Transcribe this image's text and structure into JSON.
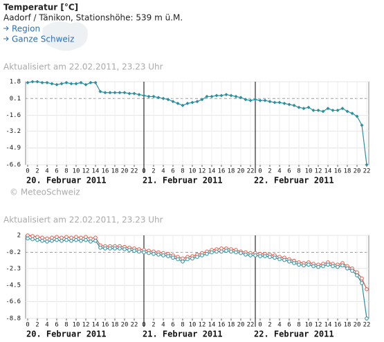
{
  "header": {
    "title": "Temperatur [°C]",
    "station": "Aadorf / Tänikon, Stationshöhe: 539 m ü.M.",
    "links": [
      "Region",
      "Ganze Schweiz"
    ]
  },
  "updated_1": "Aktualisiert am 22.02.2011, 23.23 Uhr",
  "copyright": "© MeteoSchweiz",
  "updated_2": "Aktualisiert am 22.02.2011, 23.23 Uhr",
  "chart_data": [
    {
      "type": "line",
      "grid": true,
      "categories": [
        "0",
        null,
        "2",
        null,
        "4",
        null,
        "6",
        null,
        "8",
        null,
        "10",
        null,
        "12",
        null,
        "14",
        null,
        "16",
        null,
        "18",
        null,
        "20",
        null,
        "22",
        null,
        "0",
        null,
        "2",
        null,
        "4",
        null,
        "6",
        null,
        "8",
        null,
        "10",
        null,
        "12",
        null,
        "14",
        null,
        "16",
        null,
        "18",
        null,
        "20",
        null,
        "22",
        null,
        "0",
        null,
        "2",
        null,
        "4",
        null,
        "6",
        null,
        "8",
        null,
        "10",
        null,
        "12",
        null,
        "14",
        null,
        "16",
        null,
        "18",
        null,
        "20",
        null,
        "22"
      ],
      "day_labels": [
        "20. Februar 2011",
        "21. Februar 2011",
        "22. Februar 2011"
      ],
      "ylim": [
        -6.6,
        1.8
      ],
      "yticks": [
        1.8,
        0.1,
        -1.6,
        -3.2,
        -4.9,
        -6.6
      ],
      "series": [
        {
          "color": "#2a8fa0",
          "marker": "diamond",
          "values": [
            1.7,
            1.8,
            1.8,
            1.7,
            1.7,
            1.6,
            1.5,
            1.6,
            1.7,
            1.6,
            1.6,
            1.7,
            1.5,
            1.7,
            1.7,
            0.8,
            0.7,
            0.7,
            0.7,
            0.7,
            0.7,
            0.6,
            0.6,
            0.5,
            0.4,
            0.3,
            0.3,
            0.2,
            0.1,
            0.0,
            -0.2,
            -0.4,
            -0.6,
            -0.4,
            -0.3,
            -0.2,
            0.0,
            0.3,
            0.3,
            0.4,
            0.4,
            0.5,
            0.4,
            0.3,
            0.2,
            0.0,
            -0.1,
            0.0,
            -0.1,
            -0.1,
            -0.2,
            -0.3,
            -0.3,
            -0.4,
            -0.5,
            -0.6,
            -0.8,
            -0.9,
            -0.8,
            -1.1,
            -1.1,
            -1.2,
            -0.9,
            -1.1,
            -1.1,
            -0.9,
            -1.2,
            -1.4,
            -1.7,
            -2.6,
            -6.6
          ]
        }
      ]
    },
    {
      "type": "line",
      "grid": true,
      "categories": [
        "0",
        null,
        "2",
        null,
        "4",
        null,
        "6",
        null,
        "8",
        null,
        "10",
        null,
        "12",
        null,
        "14",
        null,
        "16",
        null,
        "18",
        null,
        "20",
        null,
        "22",
        null,
        "0",
        null,
        "2",
        null,
        "4",
        null,
        "6",
        null,
        "8",
        null,
        "10",
        null,
        "12",
        null,
        "14",
        null,
        "16",
        null,
        "18",
        null,
        "20",
        null,
        "22",
        null,
        "0",
        null,
        "2",
        null,
        "4",
        null,
        "6",
        null,
        "8",
        null,
        "10",
        null,
        "12",
        null,
        "14",
        null,
        "16",
        null,
        "18",
        null,
        "20",
        null,
        "22"
      ],
      "day_labels": [
        "20. Februar 2011",
        "21. Februar 2011",
        "22. Februar 2011"
      ],
      "ylim": [
        -8.8,
        2.0
      ],
      "yticks": [
        2.0,
        -0.2,
        -2.3,
        -4.5,
        -6.6,
        -8.8
      ],
      "series": [
        {
          "color": "#e05a48",
          "marker": "circle",
          "values": [
            2.0,
            1.9,
            1.8,
            1.7,
            1.6,
            1.7,
            1.8,
            1.7,
            1.8,
            1.7,
            1.8,
            1.7,
            1.8,
            1.6,
            1.7,
            0.7,
            0.6,
            0.6,
            0.6,
            0.6,
            0.5,
            0.4,
            0.3,
            0.2,
            0.1,
            0.0,
            -0.1,
            -0.2,
            -0.3,
            -0.4,
            -0.6,
            -0.8,
            -1.0,
            -0.8,
            -0.7,
            -0.5,
            -0.3,
            -0.1,
            0.1,
            0.2,
            0.3,
            0.3,
            0.2,
            0.1,
            -0.1,
            -0.2,
            -0.3,
            -0.3,
            -0.4,
            -0.4,
            -0.5,
            -0.6,
            -0.8,
            -0.9,
            -1.1,
            -1.3,
            -1.5,
            -1.6,
            -1.5,
            -1.7,
            -1.8,
            -1.7,
            -1.5,
            -1.7,
            -1.8,
            -1.6,
            -2.0,
            -2.3,
            -2.8,
            -3.6,
            -5.0
          ]
        },
        {
          "color": "#2a8fa0",
          "marker": "circle",
          "values": [
            1.6,
            1.5,
            1.4,
            1.3,
            1.2,
            1.3,
            1.4,
            1.3,
            1.4,
            1.3,
            1.4,
            1.3,
            1.4,
            1.2,
            1.3,
            0.4,
            0.3,
            0.3,
            0.3,
            0.3,
            0.2,
            0.1,
            0.0,
            -0.1,
            -0.2,
            -0.3,
            -0.4,
            -0.5,
            -0.6,
            -0.7,
            -0.9,
            -1.1,
            -1.4,
            -1.1,
            -1.0,
            -0.8,
            -0.6,
            -0.4,
            -0.2,
            -0.1,
            -0.1,
            0.0,
            -0.1,
            -0.2,
            -0.3,
            -0.5,
            -0.6,
            -0.6,
            -0.7,
            -0.7,
            -0.8,
            -0.9,
            -1.1,
            -1.2,
            -1.4,
            -1.6,
            -1.8,
            -1.9,
            -1.8,
            -2.0,
            -2.1,
            -2.0,
            -1.8,
            -2.0,
            -2.1,
            -1.9,
            -2.3,
            -2.6,
            -3.2,
            -4.2,
            -8.8
          ]
        }
      ]
    }
  ]
}
